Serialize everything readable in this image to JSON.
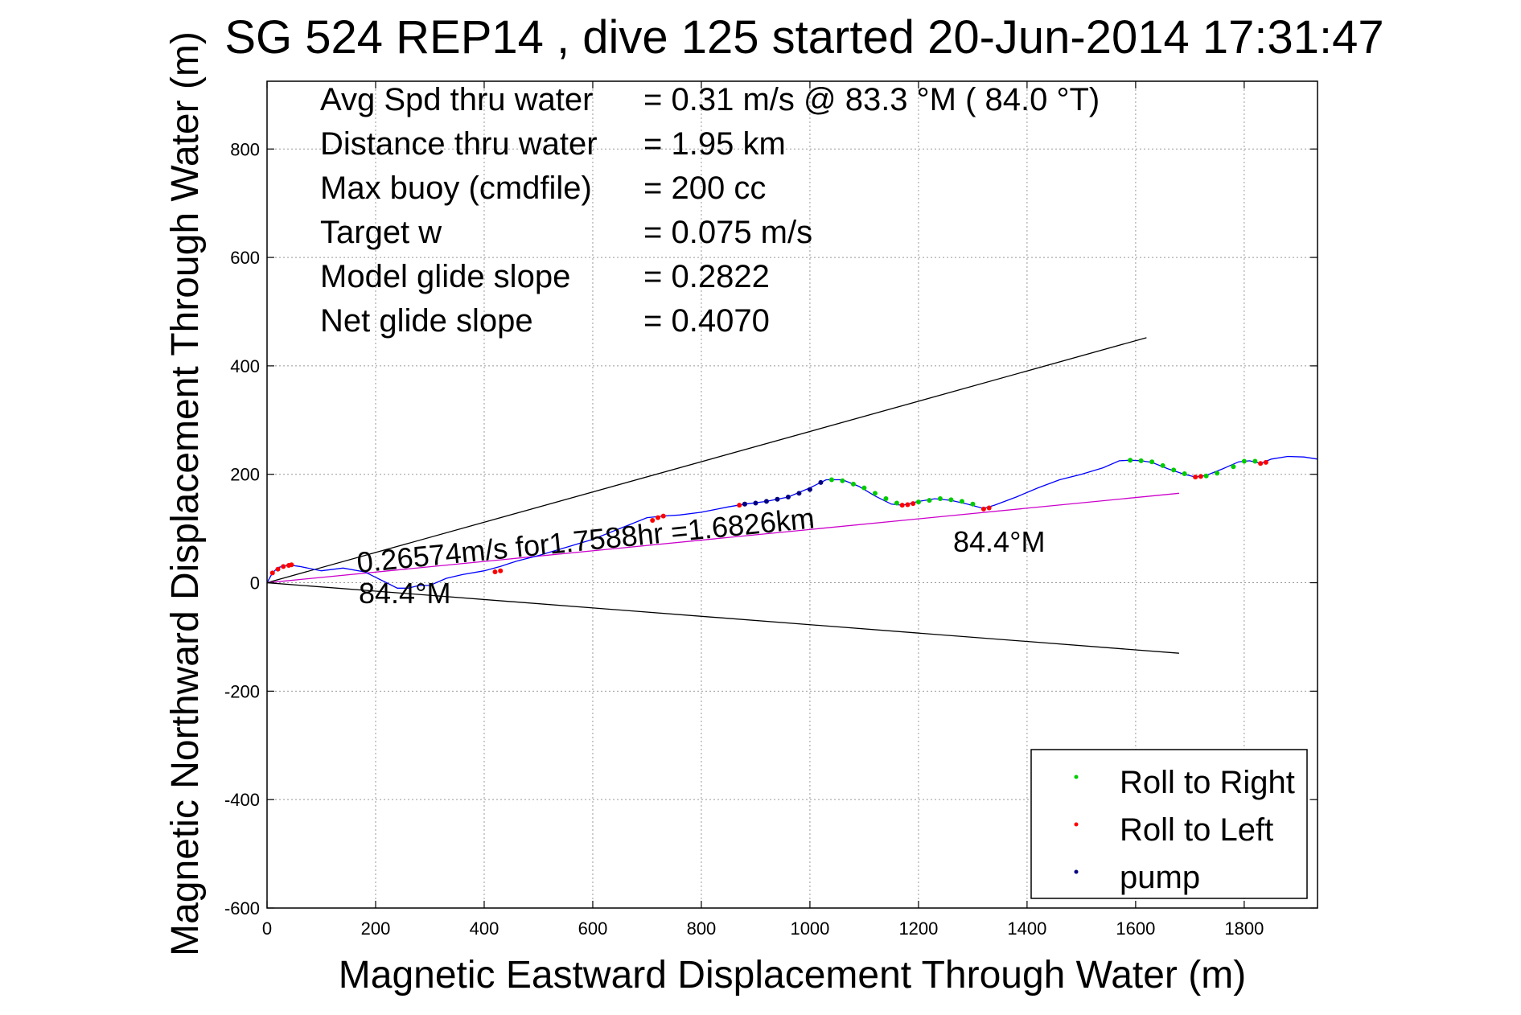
{
  "chart_data": {
    "type": "line",
    "title": "SG 524   REP14  , dive 125 started 20-Jun-2014 17:31:47",
    "xlabel": "Magnetic Eastward Displacement Through Water (m)",
    "ylabel": "Magnetic Northward Displacement Through Water (m)",
    "xlim": [
      0,
      1935
    ],
    "ylim": [
      -600,
      925
    ],
    "xticks": [
      "0",
      "200",
      "400",
      "600",
      "800",
      "1000",
      "1200",
      "1400",
      "1600",
      "1800"
    ],
    "xtick_values": [
      0,
      200,
      400,
      600,
      800,
      1000,
      1200,
      1400,
      1600,
      1800
    ],
    "yticks": [
      "-600",
      "-400",
      "-200",
      "0",
      "200",
      "400",
      "600",
      "800"
    ],
    "ytick_values": [
      -600,
      -400,
      -200,
      0,
      200,
      400,
      600,
      800
    ],
    "grid": true,
    "legend_position": "bottom-right",
    "info_lines": [
      {
        "label": "Avg Spd thru water",
        "value": "=  0.31 m/s @  83.3 °M ( 84.0 °T)"
      },
      {
        "label": "Distance thru water",
        "value": "=  1.95 km"
      },
      {
        "label": "Max buoy (cmdfile)",
        "value": "= 200 cc"
      },
      {
        "label": "Target w",
        "value": "= 0.075 m/s"
      },
      {
        "label": "Model glide slope",
        "value": "= 0.2822"
      },
      {
        "label": "Net glide slope",
        "value": "= 0.4070"
      }
    ],
    "annotations": {
      "speed": "0.26574m/s for1.7588hr =1.6826km",
      "heading_left": "84.4°M",
      "heading_right": "84.4°M"
    },
    "track": {
      "color": "#0000ff",
      "x": [
        0,
        10,
        20,
        40,
        60,
        100,
        140,
        180,
        200,
        220,
        240,
        260,
        280,
        300,
        330,
        360,
        400,
        430,
        460,
        500,
        550,
        600,
        650,
        700,
        730,
        760,
        800,
        850,
        880,
        920,
        960,
        1000,
        1030,
        1060,
        1090,
        1120,
        1150,
        1170,
        1180,
        1200,
        1230,
        1260,
        1290,
        1320,
        1340,
        1380,
        1420,
        1460,
        1500,
        1540,
        1570,
        1590,
        1610,
        1630,
        1660,
        1690,
        1710,
        1730,
        1760,
        1790,
        1810,
        1830,
        1850,
        1880,
        1910,
        1935
      ],
      "y": [
        0,
        18,
        28,
        33,
        30,
        22,
        27,
        20,
        10,
        0,
        -10,
        -10,
        -5,
        -5,
        8,
        15,
        22,
        30,
        40,
        50,
        65,
        80,
        100,
        120,
        123,
        125,
        130,
        140,
        145,
        150,
        158,
        175,
        190,
        190,
        178,
        160,
        145,
        143,
        145,
        150,
        155,
        152,
        145,
        137,
        143,
        158,
        175,
        190,
        200,
        212,
        225,
        226,
        225,
        222,
        210,
        200,
        195,
        198,
        210,
        223,
        225,
        220,
        228,
        233,
        232,
        228
      ]
    },
    "series": [
      {
        "name": "Roll to Right",
        "color": "#00cc00",
        "x": [
          1040,
          1060,
          1080,
          1100,
          1120,
          1140,
          1160,
          1200,
          1220,
          1240,
          1260,
          1280,
          1300,
          1590,
          1610,
          1630,
          1650,
          1670,
          1690,
          1730,
          1750,
          1780,
          1800,
          1820
        ],
        "y": [
          190,
          188,
          182,
          175,
          165,
          155,
          147,
          149,
          152,
          155,
          153,
          150,
          145,
          226,
          225,
          223,
          216,
          208,
          201,
          197,
          202,
          214,
          224,
          224
        ]
      },
      {
        "name": "Roll to Left",
        "color": "#ff0000",
        "x": [
          10,
          20,
          30,
          40,
          45,
          420,
          430,
          710,
          720,
          730,
          870,
          880,
          1170,
          1180,
          1190,
          1320,
          1330,
          1710,
          1720,
          1830,
          1840
        ],
        "y": [
          18,
          25,
          30,
          32,
          33,
          20,
          22,
          115,
          120,
          123,
          143,
          145,
          143,
          144,
          146,
          136,
          138,
          195,
          196,
          220,
          222
        ]
      },
      {
        "name": "pump",
        "color": "#000080",
        "x": [
          880,
          900,
          920,
          940,
          960,
          980,
          1000,
          1020
        ],
        "y": [
          145,
          147,
          150,
          154,
          158,
          165,
          172,
          185
        ]
      }
    ],
    "lines": [
      {
        "color": "#000000",
        "x": [
          0,
          1620
        ],
        "y": [
          0,
          452
        ]
      },
      {
        "color": "#000000",
        "x": [
          0,
          1680
        ],
        "y": [
          0,
          -130
        ]
      },
      {
        "color": "#cc00cc",
        "x": [
          0,
          1680
        ],
        "y": [
          0,
          165
        ]
      }
    ]
  }
}
